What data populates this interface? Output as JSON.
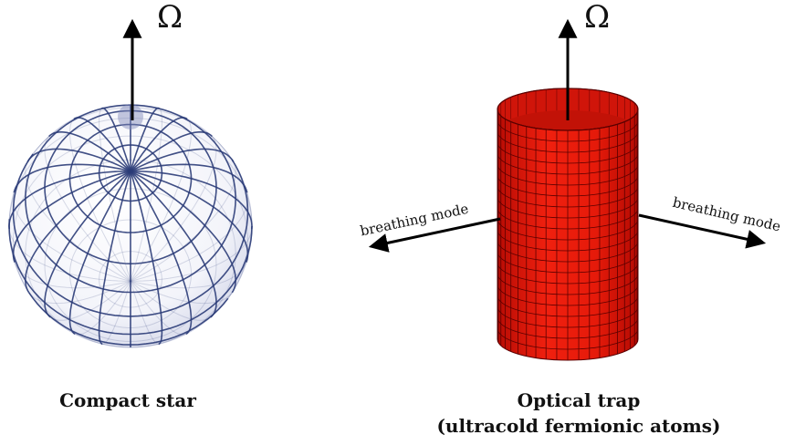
{
  "left": {
    "rotation_symbol": "Ω",
    "caption": "Compact star"
  },
  "right": {
    "rotation_symbol": "Ω",
    "caption_line1": "Optical trap",
    "caption_line2": "(ultracold fermionic atoms)",
    "mode_left": "breathing mode",
    "mode_right": "breathing mode"
  },
  "colors": {
    "sphere_grid": "#2b3c78",
    "cylinder_fill": "#e8180c",
    "cylinder_grid": "#5a0000",
    "arrow": "#000000"
  }
}
